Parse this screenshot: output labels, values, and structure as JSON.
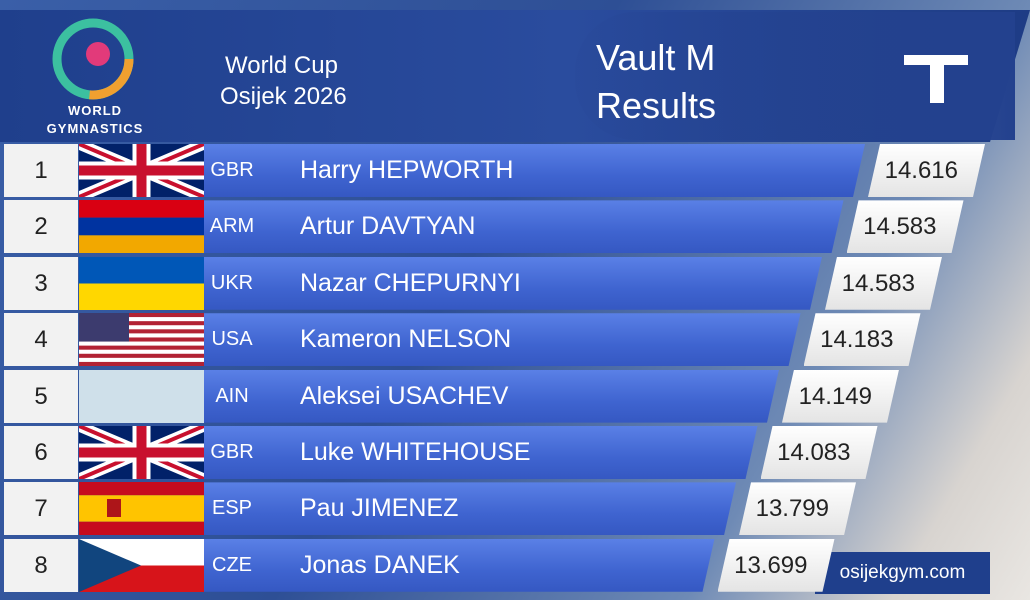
{
  "header": {
    "logo_line1": "WORLD",
    "logo_line2": "GYMNASTICS",
    "competition": "World Cup",
    "location": "Osijek 2026",
    "event": "Vault M",
    "subtitle": "Results"
  },
  "table": {
    "rows": [
      [
        "1",
        "GBR",
        "Harry HEPWORTH",
        "14.616"
      ],
      [
        "2",
        "ARM",
        "Artur DAVTYAN",
        "14.583"
      ],
      [
        "3",
        "UKR",
        "Nazar CHEPURNYI",
        "14.583"
      ],
      [
        "4",
        "USA",
        "Kameron NELSON",
        "14.183"
      ],
      [
        "5",
        "AIN",
        "Aleksei USACHEV",
        "14.149"
      ],
      [
        "6",
        "GBR",
        "Luke WHITEHOUSE",
        "14.083"
      ],
      [
        "7",
        "ESP",
        "Pau JIMENEZ",
        "13.799"
      ],
      [
        "8",
        "CZE",
        "Jonas DANEK",
        "13.699"
      ]
    ]
  },
  "footer": {
    "website": "osijekgym.com"
  }
}
